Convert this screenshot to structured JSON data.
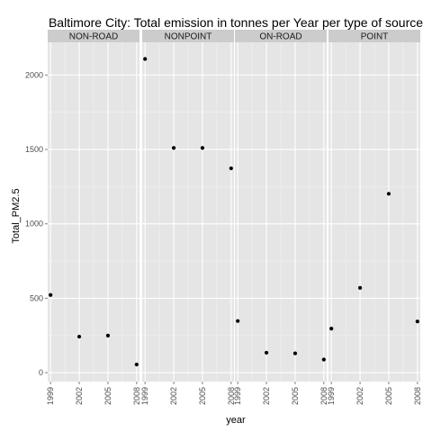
{
  "chart_data": {
    "type": "scatter",
    "title": "Baltimore City: Total emission in tonnes per Year per type of source",
    "xlabel": "year",
    "ylabel": "Total_PM2.5",
    "x_ticks": [
      "1999",
      "2002",
      "2005",
      "2008"
    ],
    "y_ticks": [
      0,
      500,
      1000,
      1500,
      2000
    ],
    "xlim": [
      1998.7,
      2008.3
    ],
    "ylim": [
      -60,
      2220
    ],
    "grid": true,
    "facet_by": "type",
    "panels": [
      {
        "name": "NON-ROAD",
        "x": [
          1999,
          2002,
          2005,
          2008
        ],
        "y": [
          522,
          242,
          249,
          55
        ]
      },
      {
        "name": "NONPOINT",
        "x": [
          1999,
          2002,
          2005,
          2008
        ],
        "y": [
          2108,
          1510,
          1510,
          1373
        ]
      },
      {
        "name": "ON-ROAD",
        "x": [
          1999,
          2002,
          2005,
          2008
        ],
        "y": [
          347,
          134,
          130,
          88
        ]
      },
      {
        "name": "POINT",
        "x": [
          1999,
          2002,
          2005,
          2008
        ],
        "y": [
          296,
          570,
          1202,
          344
        ]
      }
    ]
  }
}
